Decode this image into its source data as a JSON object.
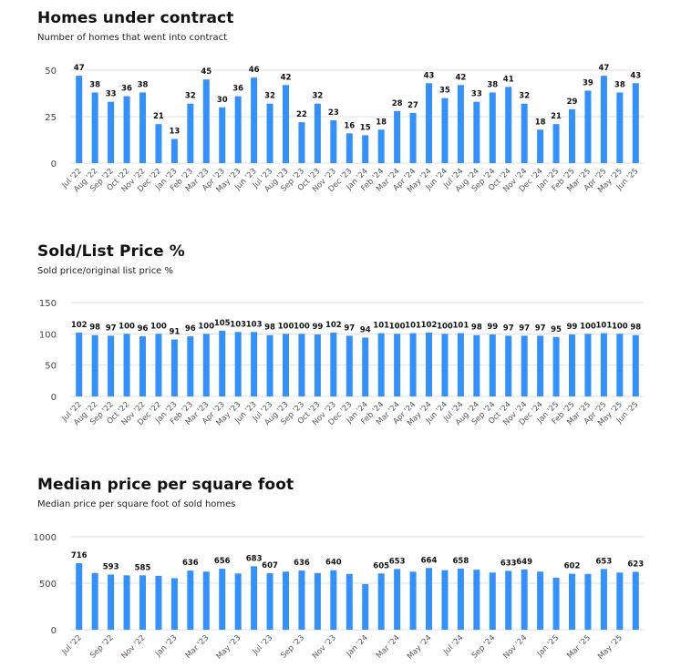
{
  "colors": {
    "bar": "#3390ff",
    "grid": "#e2e2e2",
    "text": "#111111"
  },
  "chart_data": [
    {
      "type": "bar",
      "title": "Homes under contract",
      "subtitle": "Number of homes that went into contract",
      "xlabel": "",
      "ylabel": "",
      "ylim": [
        0,
        50
      ],
      "yticks": [
        0,
        25,
        50
      ],
      "grid": true,
      "categories": [
        "Jul '22",
        "Aug '22",
        "Sep '22",
        "Oct '22",
        "Nov '22",
        "Dec '22",
        "Jan '23",
        "Feb '23",
        "Mar '23",
        "Apr '23",
        "May '23",
        "Jun '23",
        "Jul '23",
        "Aug '23",
        "Sep '23",
        "Oct '23",
        "Nov '23",
        "Dec '23",
        "Jan '24",
        "Feb '24",
        "Mar '24",
        "Apr '24",
        "May '24",
        "Jun '24",
        "Jul '24",
        "Aug '24",
        "Sep '24",
        "Oct '24",
        "Nov '24",
        "Dec '24",
        "Jan '25",
        "Feb '25",
        "Mar '25",
        "Apr '25",
        "May '25",
        "Jun '25"
      ],
      "x_tick_labels": [
        "Jul '22",
        "Aug '22",
        "Sep '22",
        "Oct '22",
        "Nov '22",
        "Dec '22",
        "Jan '23",
        "Feb '23",
        "Mar '23",
        "Apr '23",
        "May '23",
        "Jun '23",
        "Jul '23",
        "Aug '23",
        "Sep '23",
        "Oct '23",
        "Nov '23",
        "Dec '23",
        "Jan '24",
        "Feb '24",
        "Mar '24",
        "Apr '24",
        "May '24",
        "Jun '24",
        "Jul '24",
        "Aug '24",
        "Sep '24",
        "Oct '24",
        "Nov '24",
        "Dec '24",
        "Jan '25",
        "Feb '25",
        "Mar '25",
        "Apr '25",
        "May '25",
        "Jun '25"
      ],
      "values": [
        47,
        38,
        33,
        36,
        38,
        21,
        13,
        32,
        45,
        30,
        36,
        46,
        32,
        42,
        22,
        32,
        23,
        16,
        15,
        18,
        28,
        27,
        43,
        35,
        42,
        33,
        38,
        41,
        32,
        18,
        21,
        29,
        39,
        47,
        38,
        43
      ],
      "data_labels": [
        "47",
        "38",
        "33",
        "36",
        "38",
        "21",
        "13",
        "32",
        "45",
        "30",
        "36",
        "46",
        "32",
        "42",
        "22",
        "32",
        "23",
        "16",
        "15",
        "18",
        "28",
        "27",
        "43",
        "35",
        "42",
        "33",
        "38",
        "41",
        "32",
        "18",
        "21",
        "29",
        "39",
        "47",
        "38",
        "43"
      ]
    },
    {
      "type": "bar",
      "title": "Sold/List Price %",
      "subtitle": "Sold price/original list price %",
      "xlabel": "",
      "ylabel": "",
      "ylim": [
        0,
        150
      ],
      "yticks": [
        0,
        50,
        100,
        150
      ],
      "grid": true,
      "categories": [
        "Jul '22",
        "Aug '22",
        "Sep '22",
        "Oct '22",
        "Nov '22",
        "Dec '22",
        "Jan '23",
        "Feb '23",
        "Mar '23",
        "Apr '23",
        "May '23",
        "Jun '23",
        "Jul '23",
        "Aug '23",
        "Sep '23",
        "Oct '23",
        "Nov '23",
        "Dec '23",
        "Jan '24",
        "Feb '24",
        "Mar '24",
        "Apr '24",
        "May '24",
        "Jun '24",
        "Jul '24",
        "Aug '24",
        "Sep '24",
        "Oct '24",
        "Nov '24",
        "Dec '24",
        "Jan '25",
        "Feb '25",
        "Mar '25",
        "Apr '25",
        "May '25",
        "Jun '25"
      ],
      "x_tick_labels": [
        "Jul '22",
        "Aug '22",
        "Sep '22",
        "Oct '22",
        "Nov '22",
        "Dec '22",
        "Jan '23",
        "Feb '23",
        "Mar '23",
        "Apr '23",
        "May '23",
        "Jun '23",
        "Jul '23",
        "Aug '23",
        "Sep '23",
        "Oct '23",
        "Nov '23",
        "Dec '23",
        "Jan '24",
        "Feb '24",
        "Mar '24",
        "Apr '24",
        "May '24",
        "Jun '24",
        "Jul '24",
        "Aug '24",
        "Sep '24",
        "Oct '24",
        "Nov '24",
        "Dec '24",
        "Jan '25",
        "Feb '25",
        "Mar '25",
        "Apr '25",
        "May '25",
        "Jun '25"
      ],
      "values": [
        102,
        98,
        97,
        100,
        96,
        100,
        91,
        96,
        100,
        105,
        103,
        103,
        98,
        100,
        100,
        99,
        102,
        97,
        94,
        101,
        100,
        101,
        102,
        100,
        101,
        98,
        99,
        97,
        97,
        97,
        95,
        99,
        100,
        101,
        100,
        98
      ],
      "data_labels": [
        "102",
        "98",
        "97",
        "100",
        "96",
        "100",
        "91",
        "96",
        "100",
        "105",
        "103",
        "103",
        "98",
        "100",
        "100",
        "99",
        "102",
        "97",
        "94",
        "101",
        "100",
        "101",
        "102",
        "100",
        "101",
        "98",
        "99",
        "97",
        "97",
        "97",
        "95",
        "99",
        "100",
        "101",
        "100",
        "98"
      ]
    },
    {
      "type": "bar",
      "title": "Median price per square foot",
      "subtitle": "Median price per square foot of sold homes",
      "xlabel": "",
      "ylabel": "",
      "ylim": [
        0,
        1000
      ],
      "yticks": [
        0,
        500,
        1000
      ],
      "grid": true,
      "categories": [
        "Jul '22",
        "Aug '22",
        "Sep '22",
        "Oct '22",
        "Nov '22",
        "Dec '22",
        "Jan '23",
        "Feb '23",
        "Mar '23",
        "Apr '23",
        "May '23",
        "Jun '23",
        "Jul '23",
        "Aug '23",
        "Sep '23",
        "Oct '23",
        "Nov '23",
        "Dec '23",
        "Jan '24",
        "Feb '24",
        "Mar '24",
        "Apr '24",
        "May '24",
        "Jun '24",
        "Jul '24",
        "Aug '24",
        "Sep '24",
        "Oct '24",
        "Nov '24",
        "Dec '24",
        "Jan '25",
        "Feb '25",
        "Mar '25",
        "Apr '25",
        "May '25",
        "Jun '25"
      ],
      "x_tick_labels": [
        "Jul '22",
        "",
        "Sep '22",
        "",
        "Nov '22",
        "",
        "Jan '23",
        "",
        "Mar '23",
        "",
        "May '23",
        "",
        "Jul '23",
        "",
        "Sep '23",
        "",
        "Nov '23",
        "",
        "Jan '24",
        "",
        "Mar '24",
        "",
        "May '24",
        "",
        "Jul '24",
        "",
        "Sep '24",
        "",
        "Nov '24",
        "",
        "Jan '25",
        "",
        "Mar '25",
        "",
        "May '25",
        ""
      ],
      "values": [
        716,
        610,
        593,
        585,
        585,
        580,
        555,
        636,
        625,
        656,
        605,
        683,
        607,
        625,
        636,
        610,
        640,
        600,
        490,
        605,
        653,
        625,
        664,
        640,
        658,
        645,
        615,
        633,
        649,
        625,
        560,
        602,
        600,
        653,
        615,
        623
      ],
      "data_labels": [
        "716",
        "",
        "593",
        "",
        "585",
        "",
        "",
        "636",
        "",
        "656",
        "",
        "683",
        "607",
        "",
        "636",
        "",
        "640",
        "",
        "",
        "605",
        "653",
        "",
        "664",
        "",
        "658",
        "",
        "",
        "633",
        "649",
        "",
        "",
        "602",
        "",
        "653",
        "",
        "623"
      ]
    }
  ]
}
